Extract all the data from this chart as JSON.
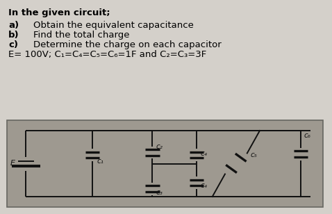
{
  "bg_color": "#c8c4bc",
  "text_bg": "#d4d0ca",
  "title": "In the given circuit;",
  "items": [
    [
      "a)",
      "Obtain the equivalent capacitance"
    ],
    [
      "b)",
      "Find the total charge"
    ],
    [
      "c)",
      "Determine the charge on each capacitor"
    ]
  ],
  "eq_line": "E= 100V; C₁=C₄=C₅=C₆=1F and C₂=C₃=3F",
  "fs_title": 9.5,
  "fs_item": 9.5,
  "fs_eq": 9.5,
  "circuit_bg": "#9e9990",
  "line_color": "#111111",
  "lw": 1.4
}
